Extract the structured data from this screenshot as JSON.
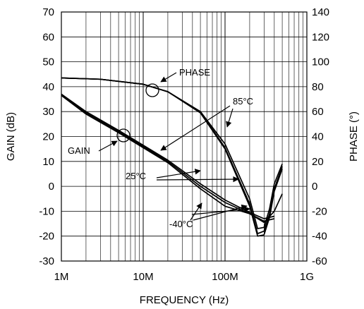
{
  "chart_data": {
    "type": "line",
    "xlabel": "FREQUENCY (Hz)",
    "ylabel": "GAIN (dB)",
    "y2label": "PHASE (°)",
    "x_scale": "log",
    "xlim": [
      1000000,
      1000000000
    ],
    "ylim": [
      -30,
      70
    ],
    "y2lim": [
      -60,
      140
    ],
    "grid": true,
    "x_ticks": [
      {
        "value": 1000000,
        "label": "1M"
      },
      {
        "value": 10000000,
        "label": "10M"
      },
      {
        "value": 100000000,
        "label": "100M"
      },
      {
        "value": 1000000000,
        "label": "1G"
      }
    ],
    "y_ticks": [
      {
        "value": 70,
        "label": "70"
      },
      {
        "value": 60,
        "label": "60"
      },
      {
        "value": 50,
        "label": "50"
      },
      {
        "value": 40,
        "label": "40"
      },
      {
        "value": 30,
        "label": "30"
      },
      {
        "value": 20,
        "label": "20"
      },
      {
        "value": 10,
        "label": "10"
      },
      {
        "value": 0,
        "label": "0"
      },
      {
        "value": -10,
        "label": "-10"
      },
      {
        "value": -20,
        "label": "-20"
      },
      {
        "value": -30,
        "label": "-30"
      }
    ],
    "y2_ticks": [
      {
        "value": 140,
        "label": "140"
      },
      {
        "value": 120,
        "label": "120"
      },
      {
        "value": 100,
        "label": "100"
      },
      {
        "value": 80,
        "label": "80"
      },
      {
        "value": 60,
        "label": "60"
      },
      {
        "value": 40,
        "label": "40"
      },
      {
        "value": 20,
        "label": "20"
      },
      {
        "value": 0,
        "label": "0"
      },
      {
        "value": -20,
        "label": "-20"
      },
      {
        "value": -40,
        "label": "-40"
      },
      {
        "value": -60,
        "label": "-60"
      }
    ],
    "series": [
      {
        "group": "gain",
        "axis": "left",
        "x": [
          1000000,
          2000000,
          5000000,
          10000000,
          20000000,
          50000000,
          100000000,
          200000000,
          300000000,
          400000000
        ],
        "y": [
          37,
          30,
          22.5,
          16.5,
          10.5,
          1,
          -5.5,
          -10.5,
          -13,
          -12
        ]
      },
      {
        "group": "gain",
        "axis": "left",
        "x": [
          1000000,
          2000000,
          5000000,
          10000000,
          20000000,
          50000000,
          100000000,
          200000000,
          300000000,
          400000000
        ],
        "y": [
          37,
          29.5,
          22,
          16,
          10,
          0,
          -6.5,
          -11,
          -14,
          -13
        ]
      },
      {
        "group": "gain",
        "axis": "left",
        "x": [
          1000000,
          2000000,
          5000000,
          10000000,
          20000000,
          50000000,
          100000000,
          200000000,
          300000000,
          400000000,
          500000000
        ],
        "y": [
          36.5,
          29,
          21.5,
          15.5,
          9.5,
          -1,
          -8,
          -11,
          -14.5,
          -10,
          -3
        ]
      },
      {
        "group": "phase",
        "axis": "right",
        "x": [
          1000000,
          3000000,
          10000000,
          20000000,
          50000000,
          100000000,
          200000000,
          250000000,
          300000000,
          350000000,
          400000000,
          500000000
        ],
        "y": [
          87,
          86,
          82,
          76,
          60,
          34,
          -10,
          -34,
          -33,
          -18,
          2,
          18
        ]
      },
      {
        "group": "phase",
        "axis": "right",
        "x": [
          1000000,
          3000000,
          10000000,
          20000000,
          50000000,
          100000000,
          200000000,
          250000000,
          300000000,
          350000000,
          400000000,
          500000000
        ],
        "y": [
          87,
          86,
          82,
          76,
          60,
          31,
          -14,
          -38,
          -36,
          -22,
          -2,
          16
        ]
      },
      {
        "group": "phase",
        "axis": "right",
        "x": [
          1000000,
          3000000,
          10000000,
          20000000,
          50000000,
          100000000,
          200000000,
          250000000,
          300000000,
          350000000,
          400000000,
          500000000
        ],
        "y": [
          87,
          86,
          82,
          76,
          59,
          30,
          -16,
          -40,
          -39,
          -25,
          -4,
          14
        ]
      }
    ],
    "annotations": {
      "phase": "PHASE",
      "gain": "GAIN",
      "t85": "85°C",
      "t25": "25°C",
      "tm40": "-40°C"
    }
  }
}
